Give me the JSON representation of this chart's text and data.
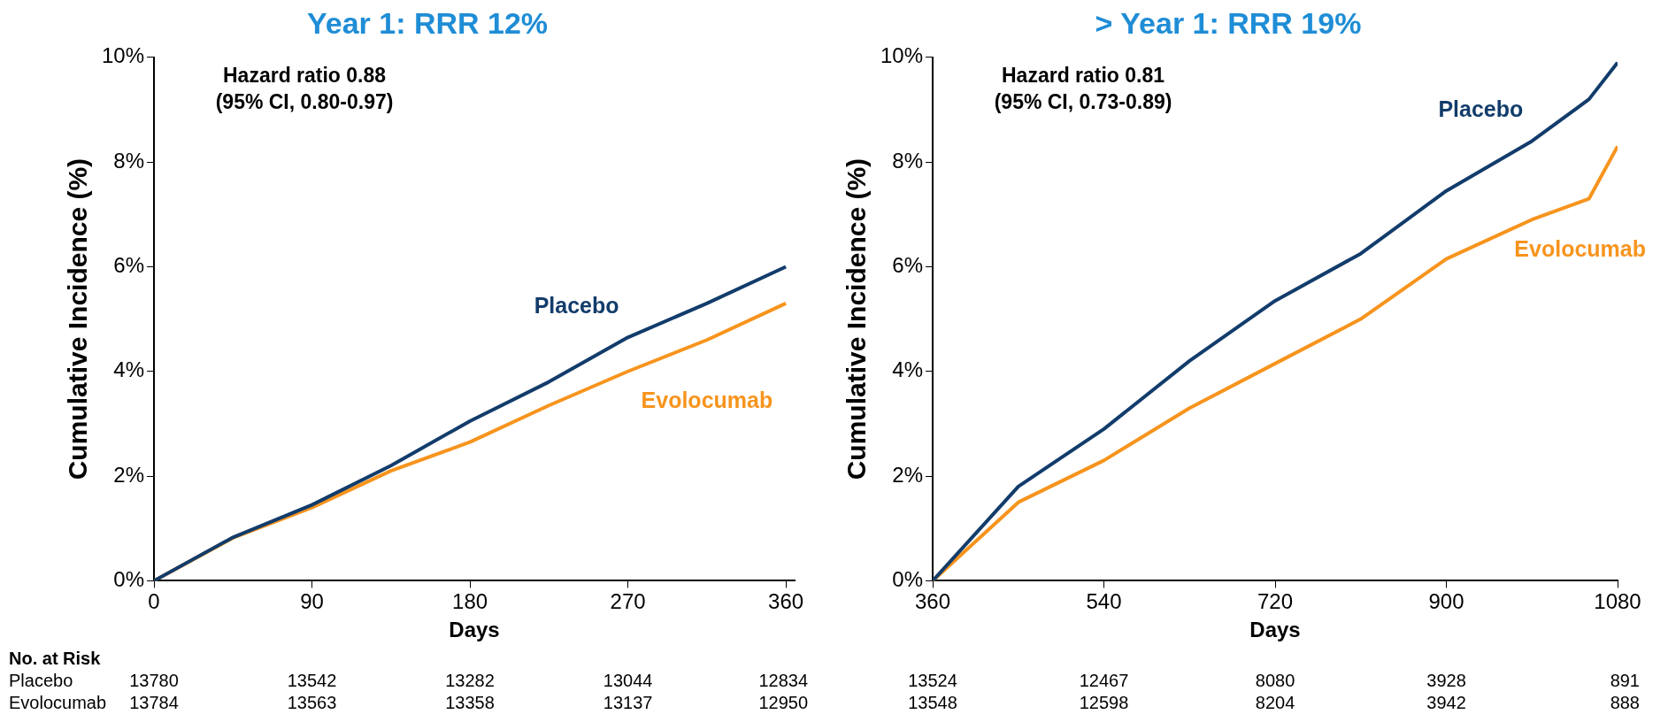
{
  "chart_data": [
    {
      "type": "line",
      "title": "Year 1: RRR 12%",
      "xlabel": "Days",
      "ylabel": "Cumulative Incidence (%)",
      "x": [
        0,
        45,
        90,
        135,
        180,
        225,
        270,
        315,
        360
      ],
      "xlim": [
        0,
        365
      ],
      "xticks": [
        0,
        90,
        180,
        270,
        360
      ],
      "ylim": [
        0,
        10
      ],
      "yticks": [
        {
          "value": 0,
          "label": "0%"
        },
        {
          "value": 2,
          "label": "2%"
        },
        {
          "value": 4,
          "label": "4%"
        },
        {
          "value": 6,
          "label": "6%"
        },
        {
          "value": 8,
          "label": "8%"
        },
        {
          "value": 10,
          "label": "10%"
        }
      ],
      "series": [
        {
          "name": "Placebo",
          "color": "#123c6b",
          "values": [
            0,
            0.83,
            1.45,
            2.2,
            3.05,
            3.8,
            4.65,
            5.3,
            6.0
          ]
        },
        {
          "name": "Evolocumab",
          "color": "#f7941d",
          "values": [
            0,
            0.82,
            1.4,
            2.1,
            2.65,
            3.35,
            4.0,
            4.6,
            5.3
          ]
        }
      ],
      "annotations": [
        "Hazard ratio 0.88",
        "(95% CI, 0.80-0.97)",
        "No. at Risk",
        "Placebo",
        "13780",
        "13542",
        "13282",
        "13044",
        "12834",
        "Evolocumab",
        "13784",
        "13563",
        "13358",
        "13137",
        "12950"
      ],
      "grid": false,
      "legend": false
    },
    {
      "type": "line",
      "title": "> Year 1: RRR 19%",
      "xlabel": "Days",
      "ylabel": "Cumulative Incidence (%)",
      "x": [
        360,
        450,
        540,
        630,
        720,
        810,
        900,
        990,
        1050,
        1080
      ],
      "xlim": [
        360,
        1080
      ],
      "xticks": [
        360,
        540,
        720,
        900,
        1080
      ],
      "ylim": [
        0,
        10
      ],
      "yticks": [
        {
          "value": 0,
          "label": "0%"
        },
        {
          "value": 2,
          "label": "2%"
        },
        {
          "value": 4,
          "label": "4%"
        },
        {
          "value": 6,
          "label": "6%"
        },
        {
          "value": 8,
          "label": "8%"
        },
        {
          "value": 10,
          "label": "10%"
        }
      ],
      "series": [
        {
          "name": "Placebo",
          "color": "#123c6b",
          "values": [
            0,
            1.8,
            2.9,
            4.2,
            5.35,
            6.25,
            7.45,
            8.4,
            9.2,
            9.9
          ]
        },
        {
          "name": "Evolocumab",
          "color": "#f7941d",
          "values": [
            0,
            1.5,
            2.3,
            3.3,
            4.15,
            5.0,
            6.15,
            6.9,
            7.3,
            8.3
          ]
        }
      ],
      "annotations": [
        "Hazard ratio 0.81",
        "(95% CI, 0.73-0.89)",
        "13524",
        "12467",
        "8080",
        "3928",
        "891",
        "13548",
        "12598",
        "8204",
        "3942",
        "888"
      ],
      "grid": false,
      "legend": false
    }
  ]
}
